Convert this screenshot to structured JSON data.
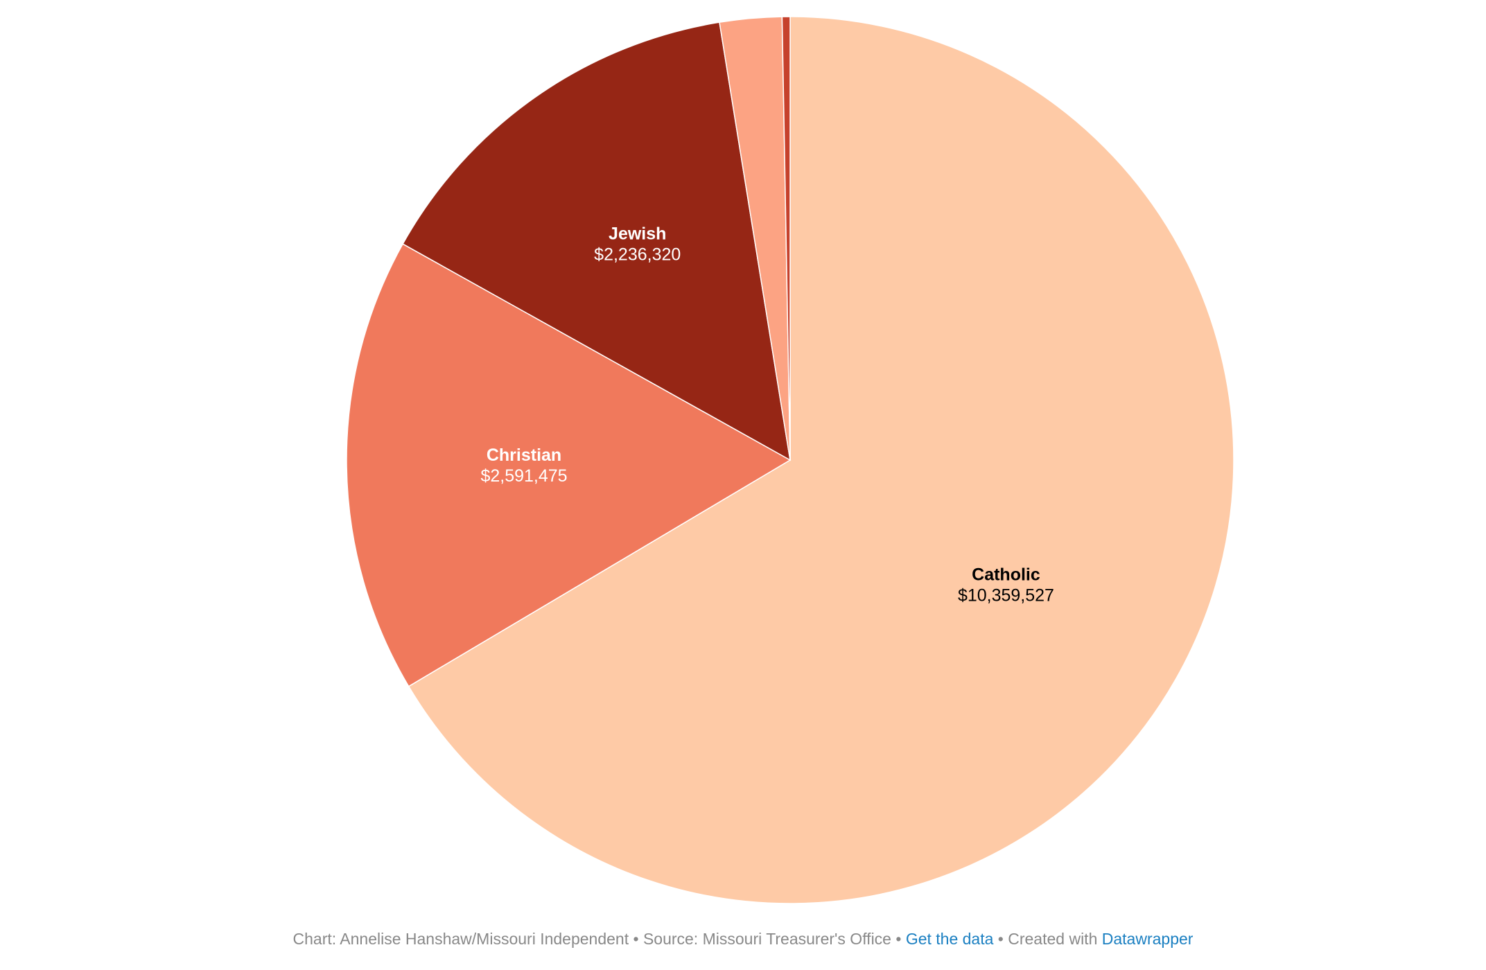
{
  "chart_data": {
    "type": "pie",
    "start_angle_deg": 0,
    "direction": "clockwise",
    "slices": [
      {
        "name": "Catholic",
        "value": 10359527,
        "label": "$10,359,527",
        "color": "#fecaa6",
        "label_color": "#000000",
        "show_label": true
      },
      {
        "name": "Christian",
        "value": 2591475,
        "label": "$2,591,475",
        "color": "#f0795c",
        "label_color": "#ffffff",
        "show_label": true
      },
      {
        "name": "Jewish",
        "value": 2236320,
        "label": "$2,236,320",
        "color": "#962615",
        "label_color": "#ffffff",
        "show_label": true
      },
      {
        "name": "",
        "value": 352000,
        "label": "",
        "color": "#fca383",
        "label_color": "#000000",
        "show_label": false
      },
      {
        "name": "",
        "value": 45000,
        "label": "",
        "color": "#c6412c",
        "label_color": "#000000",
        "show_label": false
      }
    ]
  },
  "footer": {
    "credit": "Chart: Annelise Hanshaw/Missouri Independent",
    "separator": " • ",
    "source": "Source: Missouri Treasurer's Office",
    "get_data_label": "Get the data",
    "created_with": "Created with",
    "datawrapper_label": "Datawrapper"
  },
  "colors": {
    "footer_text": "#888888",
    "link": "#1a7fc1"
  }
}
